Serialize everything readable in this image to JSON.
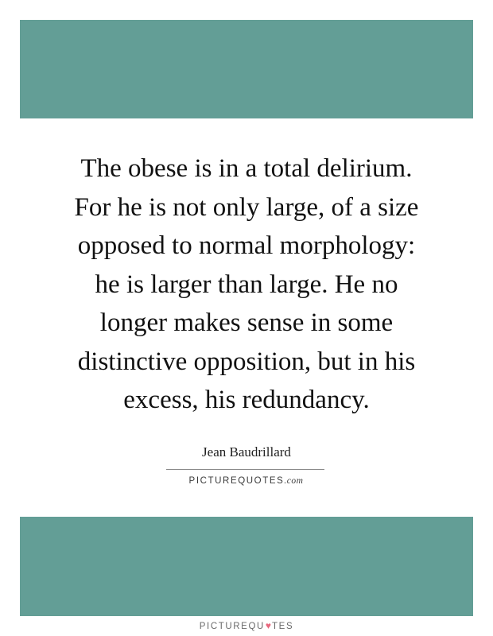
{
  "colors": {
    "band": "#639e96",
    "heart": "#e8677d"
  },
  "quote": {
    "lines": [
      "The obese is in a total delirium.",
      "For he is not only large, of a size",
      "opposed to normal morphology:",
      "he is larger than large. He no",
      "longer makes sense in some",
      "distinctive opposition, but in his",
      "excess, his redundancy."
    ]
  },
  "author": "Jean Baudrillard",
  "brand": {
    "main": "PICTUREQUOTES",
    "suffix": ".com",
    "footer_before": "PICTUREQU",
    "footer_heart_icon": "heart-icon",
    "footer_after": "TES"
  }
}
